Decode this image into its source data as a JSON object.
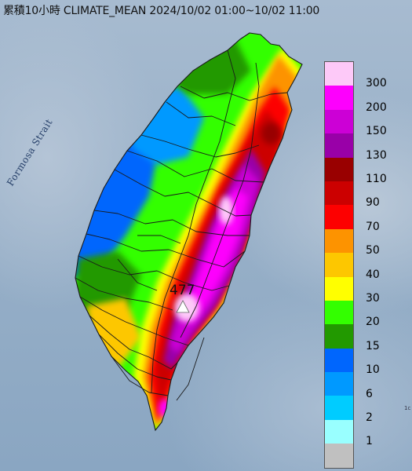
{
  "title": "累積10小時 CLIMATE_MEAN 2024/10/02 01:00~10/02 11:00",
  "strait_label": "Formosa Strait",
  "max_value": "477",
  "corner_mark": "1c",
  "legend": {
    "labels": [
      "300",
      "200",
      "150",
      "130",
      "110",
      "90",
      "70",
      "50",
      "40",
      "30",
      "20",
      "15",
      "10",
      "6",
      "2",
      "1"
    ],
    "colors": [
      "#fdc9f8",
      "#fd00fd",
      "#cc00d6",
      "#9900a8",
      "#990000",
      "#cc0000",
      "#fd0000",
      "#fd9300",
      "#fdc700",
      "#ffff00",
      "#33ff00",
      "#229900",
      "#0066fd",
      "#0099ff",
      "#00ccff",
      "#99ffff",
      "#c0c0c0"
    ]
  },
  "colors": {
    "ocean": "#98b0c8",
    "county_line": "#1a1a1a"
  }
}
